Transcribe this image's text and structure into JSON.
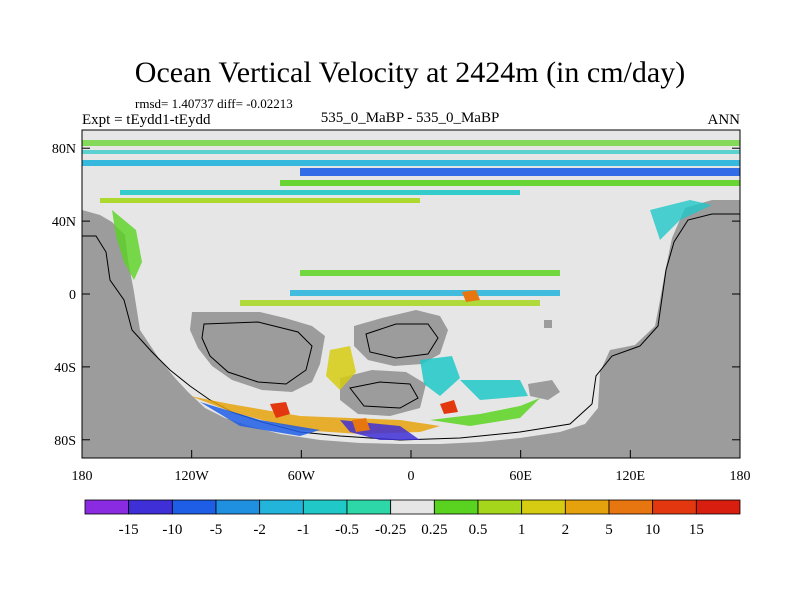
{
  "chart_data": {
    "type": "heatmap",
    "title": "Ocean Vertical Velocity at 2424m (in cm/day)",
    "subtitle_stats": "rmsd= 1.40737 diff= -0.02213",
    "left_label": "Expt = tEydd1-tEydd",
    "center_label": "535_0_MaBP - 535_0_MaBP",
    "right_label": "ANN",
    "x_range": [
      -180,
      180
    ],
    "y_range": [
      -90,
      90
    ],
    "x_ticks": [
      {
        "value": -180,
        "label": "180"
      },
      {
        "value": -120,
        "label": "120W"
      },
      {
        "value": -60,
        "label": "60W"
      },
      {
        "value": 0,
        "label": "0"
      },
      {
        "value": 60,
        "label": "60E"
      },
      {
        "value": 120,
        "label": "120E"
      },
      {
        "value": 180,
        "label": "180"
      }
    ],
    "y_ticks": [
      {
        "value": 80,
        "label": "80N"
      },
      {
        "value": 40,
        "label": "40N"
      },
      {
        "value": 0,
        "label": "0"
      },
      {
        "value": -40,
        "label": "40S"
      },
      {
        "value": -80,
        "label": "80S"
      }
    ],
    "colorbar": {
      "levels": [
        "-15",
        "-10",
        "-5",
        "-2",
        "-1",
        "-0.5",
        "-0.25",
        "0.25",
        "0.5",
        "1",
        "2",
        "5",
        "10",
        "15"
      ],
      "colors": [
        "#8a2be2",
        "#3f2fd6",
        "#1e5ee6",
        "#1f8fe0",
        "#23b4dc",
        "#20c8c8",
        "#2ed7a8",
        "#e6e6e6",
        "#5ad320",
        "#a6d61c",
        "#d6cc12",
        "#e6a20c",
        "#e87610",
        "#e3380f",
        "#d81f0f"
      ]
    },
    "land_color": "#9c9c9c",
    "ocean_background": "#e6e6e6"
  }
}
